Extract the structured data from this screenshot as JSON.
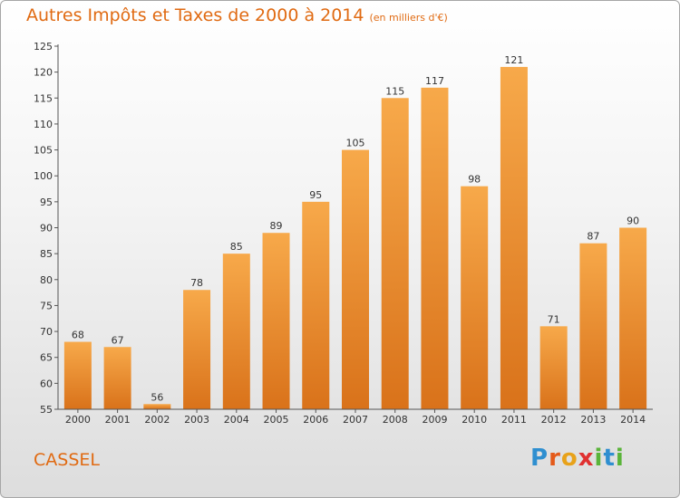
{
  "header": {
    "title": "Autres Impôts et Taxes de 2000 à 2014",
    "subtitle": "(en milliers d'€)"
  },
  "footer": {
    "place": "CASSEL",
    "logo": {
      "name": "proxiti-logo",
      "letters": [
        "P",
        "r",
        "o",
        "x",
        "i",
        "t",
        "i"
      ],
      "colors": [
        "#2f8fd0",
        "#e45a1a",
        "#e8a21a",
        "#e03030",
        "#5ab43a",
        "#2f8fd0",
        "#5ab43a"
      ]
    }
  },
  "colors": {
    "bar_light": "#f7a94a",
    "bar_dark": "#d9721a",
    "title": "#e06a12",
    "axis": "#555555"
  },
  "chart_data": {
    "type": "bar",
    "categories": [
      "2000",
      "2001",
      "2002",
      "2003",
      "2004",
      "2005",
      "2006",
      "2007",
      "2008",
      "2009",
      "2010",
      "2011",
      "2012",
      "2013",
      "2014"
    ],
    "values": [
      68,
      67,
      56,
      78,
      85,
      89,
      95,
      105,
      115,
      117,
      98,
      121,
      71,
      87,
      90
    ],
    "ylim": [
      55,
      125
    ],
    "yticks": [
      55,
      60,
      65,
      70,
      75,
      80,
      85,
      90,
      95,
      100,
      105,
      110,
      115,
      120,
      125
    ],
    "grid": false,
    "data_labels": true
  }
}
